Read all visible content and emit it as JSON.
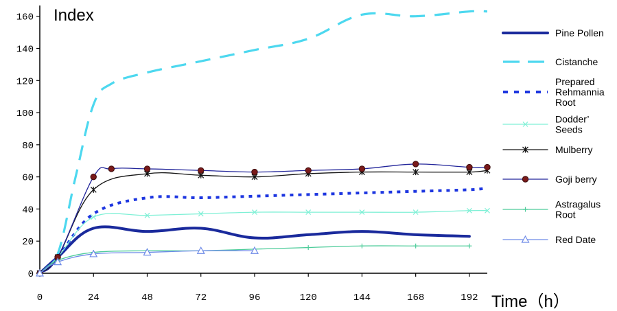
{
  "chart_data": {
    "type": "line",
    "title": "",
    "xlabel": "Time（h）",
    "ylabel": "Index",
    "xlim": [
      0,
      200
    ],
    "ylim": [
      0,
      165
    ],
    "x_ticks": [
      0,
      24,
      48,
      72,
      96,
      120,
      144,
      168,
      192
    ],
    "y_ticks": [
      0,
      20,
      40,
      60,
      80,
      100,
      120,
      140,
      160
    ],
    "grid": false,
    "legend_position": "right",
    "series": [
      {
        "name": "Pine Pollen",
        "color": "#1a2a9c",
        "style": "solid-thick",
        "marker": "",
        "points": [
          [
            0,
            0
          ],
          [
            8,
            10
          ],
          [
            24,
            28
          ],
          [
            48,
            26
          ],
          [
            72,
            28
          ],
          [
            96,
            22
          ],
          [
            120,
            24
          ],
          [
            144,
            26
          ],
          [
            168,
            24
          ],
          [
            192,
            23
          ]
        ]
      },
      {
        "name": "Cistanche",
        "color": "#4dd8ef",
        "style": "dash",
        "marker": "",
        "points": [
          [
            0,
            0
          ],
          [
            8,
            12
          ],
          [
            16,
            60
          ],
          [
            24,
            105
          ],
          [
            32,
            118
          ],
          [
            48,
            125
          ],
          [
            72,
            132
          ],
          [
            96,
            139
          ],
          [
            120,
            146
          ],
          [
            144,
            161
          ],
          [
            168,
            160
          ],
          [
            192,
            163
          ],
          [
            200,
            163
          ]
        ]
      },
      {
        "name": "Prepared Rehmannia Root",
        "color": "#1d36e0",
        "style": "dot",
        "marker": "",
        "points": [
          [
            0,
            0
          ],
          [
            8,
            10
          ],
          [
            24,
            37
          ],
          [
            48,
            47
          ],
          [
            72,
            47
          ],
          [
            96,
            48
          ],
          [
            120,
            49
          ],
          [
            144,
            50
          ],
          [
            168,
            51
          ],
          [
            192,
            52
          ],
          [
            200,
            53
          ]
        ]
      },
      {
        "name": "Dodder’ Seeds",
        "color": "#7ff0d6",
        "style": "solid",
        "marker": "x",
        "points": [
          [
            0,
            0
          ],
          [
            8,
            10
          ],
          [
            24,
            35
          ],
          [
            48,
            36
          ],
          [
            72,
            37
          ],
          [
            96,
            38
          ],
          [
            120,
            38
          ],
          [
            144,
            38
          ],
          [
            168,
            38
          ],
          [
            192,
            39
          ],
          [
            200,
            39
          ]
        ]
      },
      {
        "name": "Mulberry",
        "color": "#141414",
        "style": "solid",
        "marker": "star",
        "points": [
          [
            0,
            0
          ],
          [
            8,
            10
          ],
          [
            24,
            52
          ],
          [
            48,
            62
          ],
          [
            72,
            61
          ],
          [
            96,
            60
          ],
          [
            120,
            62
          ],
          [
            144,
            63
          ],
          [
            168,
            63
          ],
          [
            192,
            63
          ],
          [
            200,
            64
          ]
        ]
      },
      {
        "name": "Goji berry",
        "color": "#22259a",
        "style": "solid",
        "marker": "dot",
        "points": [
          [
            0,
            0
          ],
          [
            8,
            10
          ],
          [
            24,
            60
          ],
          [
            32,
            65
          ],
          [
            48,
            65
          ],
          [
            72,
            64
          ],
          [
            96,
            63
          ],
          [
            120,
            64
          ],
          [
            144,
            65
          ],
          [
            168,
            68
          ],
          [
            192,
            66
          ],
          [
            200,
            66
          ]
        ]
      },
      {
        "name": "Astragalus Root",
        "color": "#4dcc9a",
        "style": "solid",
        "marker": "plus",
        "points": [
          [
            0,
            0
          ],
          [
            8,
            8
          ],
          [
            24,
            13
          ],
          [
            48,
            14
          ],
          [
            72,
            14
          ],
          [
            96,
            15
          ],
          [
            120,
            16
          ],
          [
            144,
            17
          ],
          [
            168,
            17
          ],
          [
            192,
            17
          ]
        ]
      },
      {
        "name": "Red Date",
        "color": "#6e8ae8",
        "style": "solid",
        "marker": "triangle",
        "points": [
          [
            0,
            0
          ],
          [
            8,
            7
          ],
          [
            24,
            12
          ],
          [
            48,
            13
          ],
          [
            72,
            14
          ],
          [
            96,
            14
          ]
        ]
      }
    ]
  }
}
